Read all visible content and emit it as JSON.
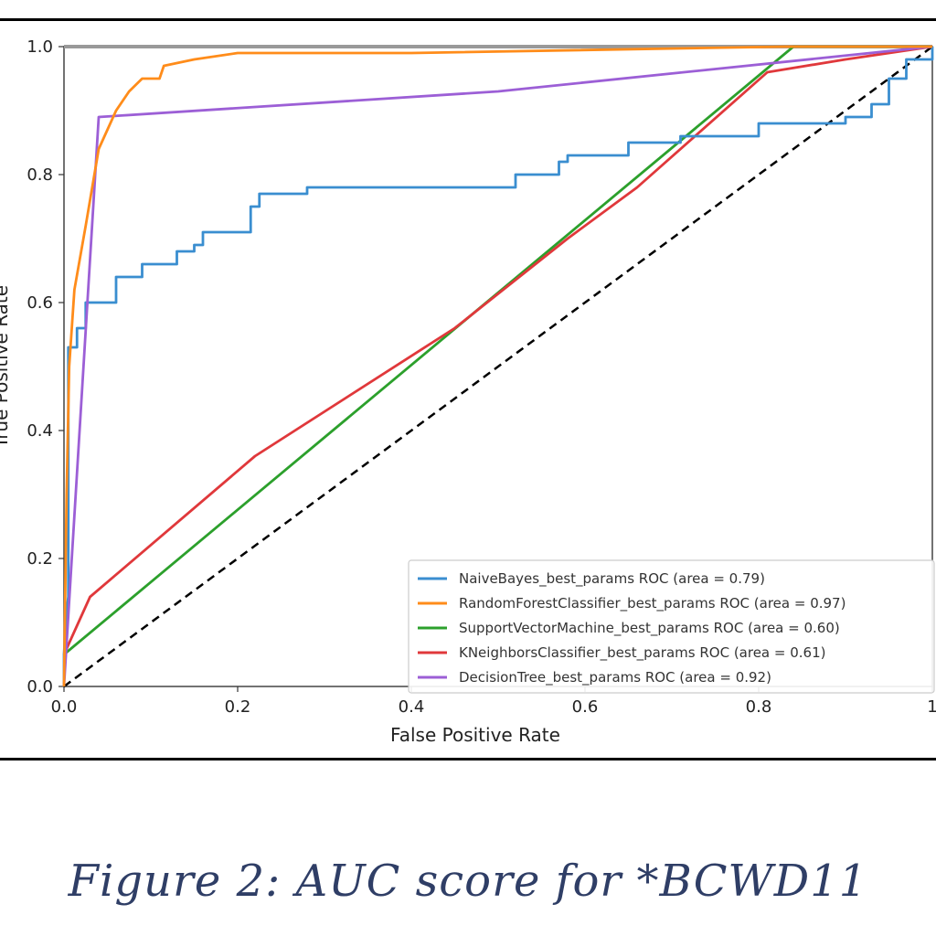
{
  "caption": "Figure 2: AUC score for *BCWD11",
  "chart_data": {
    "type": "line",
    "xlabel": "False Positive Rate",
    "ylabel": "True Positive Rate",
    "xlim": [
      0,
      1
    ],
    "ylim": [
      0,
      1
    ],
    "x_ticks": [
      "0.0",
      "0.2",
      "0.4",
      "0.6",
      "0.8",
      "1"
    ],
    "y_ticks": [
      "0.0",
      "0.2",
      "0.4",
      "0.6",
      "0.8",
      "1.0"
    ],
    "grid": false,
    "legend_position": "lower-right",
    "series": [
      {
        "name": "NaiveBayes_best_params ROC (area = 0.79)",
        "color": "#3a8ed0",
        "points": [
          [
            0,
            0
          ],
          [
            0,
            0.05
          ],
          [
            0.003,
            0.12
          ],
          [
            0.005,
            0.14
          ],
          [
            0.005,
            0.53
          ],
          [
            0.015,
            0.53
          ],
          [
            0.015,
            0.56
          ],
          [
            0.025,
            0.56
          ],
          [
            0.025,
            0.6
          ],
          [
            0.06,
            0.6
          ],
          [
            0.06,
            0.64
          ],
          [
            0.09,
            0.64
          ],
          [
            0.09,
            0.66
          ],
          [
            0.13,
            0.66
          ],
          [
            0.13,
            0.68
          ],
          [
            0.15,
            0.68
          ],
          [
            0.15,
            0.69
          ],
          [
            0.16,
            0.69
          ],
          [
            0.16,
            0.71
          ],
          [
            0.215,
            0.71
          ],
          [
            0.215,
            0.75
          ],
          [
            0.225,
            0.75
          ],
          [
            0.225,
            0.77
          ],
          [
            0.28,
            0.77
          ],
          [
            0.28,
            0.78
          ],
          [
            0.52,
            0.78
          ],
          [
            0.52,
            0.8
          ],
          [
            0.57,
            0.8
          ],
          [
            0.57,
            0.82
          ],
          [
            0.58,
            0.82
          ],
          [
            0.58,
            0.83
          ],
          [
            0.65,
            0.83
          ],
          [
            0.65,
            0.85
          ],
          [
            0.71,
            0.85
          ],
          [
            0.71,
            0.86
          ],
          [
            0.8,
            0.86
          ],
          [
            0.8,
            0.88
          ],
          [
            0.9,
            0.88
          ],
          [
            0.9,
            0.89
          ],
          [
            0.93,
            0.89
          ],
          [
            0.93,
            0.91
          ],
          [
            0.95,
            0.91
          ],
          [
            0.95,
            0.95
          ],
          [
            0.97,
            0.95
          ],
          [
            0.97,
            0.98
          ],
          [
            1,
            0.98
          ],
          [
            1,
            1
          ]
        ]
      },
      {
        "name": "RandomForestClassifier_best_params ROC (area = 0.97)",
        "color": "#ff8c1a",
        "points": [
          [
            0,
            0
          ],
          [
            0.003,
            0.3
          ],
          [
            0.006,
            0.5
          ],
          [
            0.012,
            0.62
          ],
          [
            0.025,
            0.72
          ],
          [
            0.035,
            0.8
          ],
          [
            0.04,
            0.84
          ],
          [
            0.05,
            0.87
          ],
          [
            0.06,
            0.9
          ],
          [
            0.075,
            0.93
          ],
          [
            0.09,
            0.95
          ],
          [
            0.11,
            0.95
          ],
          [
            0.115,
            0.97
          ],
          [
            0.15,
            0.98
          ],
          [
            0.2,
            0.99
          ],
          [
            0.4,
            0.99
          ],
          [
            0.83,
            1
          ],
          [
            1,
            1
          ]
        ]
      },
      {
        "name": "SupportVectorMachine_best_params ROC (area = 0.60)",
        "color": "#2ca02c",
        "points": [
          [
            0,
            0.05
          ],
          [
            0.84,
            1
          ],
          [
            1,
            1
          ]
        ]
      },
      {
        "name": "KNeighborsClassifier_best_params ROC (area = 0.61)",
        "color": "#e0383b",
        "points": [
          [
            0,
            0.05
          ],
          [
            0.03,
            0.14
          ],
          [
            0.22,
            0.36
          ],
          [
            0.45,
            0.56
          ],
          [
            0.58,
            0.7
          ],
          [
            0.66,
            0.78
          ],
          [
            0.81,
            0.96
          ],
          [
            0.9,
            0.98
          ],
          [
            1,
            1
          ]
        ]
      },
      {
        "name": "DecisionTree_best_params ROC (area = 0.92)",
        "color": "#9c5fd6",
        "points": [
          [
            0,
            0
          ],
          [
            0.04,
            0.89
          ],
          [
            0.5,
            0.93
          ],
          [
            1,
            1
          ]
        ]
      }
    ],
    "reference_line": {
      "points": [
        [
          0,
          0
        ],
        [
          1,
          1
        ]
      ],
      "color": "#000000",
      "style": "dashed"
    }
  }
}
